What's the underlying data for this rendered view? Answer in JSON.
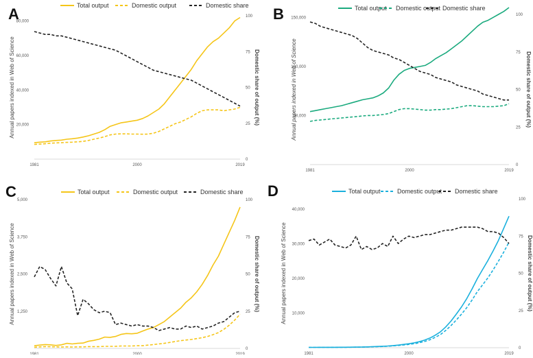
{
  "chart_data": [
    {
      "panel_label": "A",
      "type": "line",
      "legend": [
        "Total output",
        "Domestic output",
        "Domestic share"
      ],
      "ylabel": "Annual papers indexed in Web of Science",
      "y2label": "Domestic share of output (%)",
      "ylabel_italic": false,
      "y2label_italic": false,
      "x_ticks": [
        "1981",
        "2000",
        "2019"
      ],
      "y_ticks": [
        "20,000",
        "40,000",
        "60,000",
        "80,000"
      ],
      "y_tick_values": [
        20000,
        40000,
        60000,
        80000
      ],
      "y2_ticks": [
        "0",
        "25",
        "50",
        "75",
        "100"
      ],
      "y2_tick_values": [
        0,
        25,
        50,
        75,
        100
      ],
      "ylim": [
        0,
        83000
      ],
      "y2lim": [
        0,
        100
      ],
      "x": [
        1981,
        1982,
        1983,
        1984,
        1985,
        1986,
        1987,
        1988,
        1989,
        1990,
        1991,
        1992,
        1993,
        1994,
        1995,
        1996,
        1997,
        1998,
        1999,
        2000,
        2001,
        2002,
        2003,
        2004,
        2005,
        2006,
        2007,
        2008,
        2009,
        2010,
        2011,
        2012,
        2013,
        2014,
        2015,
        2016,
        2017,
        2018,
        2019
      ],
      "colors": {
        "total": "#f5c518",
        "domestic": "#f5c518",
        "share": "#222222"
      },
      "series": [
        {
          "name": "Total output",
          "style": "solid",
          "axis": "left",
          "values": [
            9500,
            9800,
            10000,
            10500,
            10800,
            11000,
            11500,
            11800,
            12200,
            12800,
            13500,
            14500,
            15500,
            17000,
            19000,
            20000,
            21000,
            21500,
            22000,
            22500,
            23500,
            25000,
            27000,
            29000,
            32000,
            36000,
            40000,
            44000,
            48000,
            52000,
            57000,
            61000,
            65000,
            68000,
            70000,
            73000,
            76000,
            80000,
            82000
          ]
        },
        {
          "name": "Domestic output",
          "style": "dashed",
          "axis": "left",
          "values": [
            8500,
            8700,
            8900,
            9200,
            9400,
            9500,
            9700,
            9800,
            10000,
            10300,
            10800,
            11500,
            12200,
            13000,
            14000,
            14500,
            14600,
            14600,
            14500,
            14500,
            14400,
            14500,
            15000,
            16000,
            17500,
            19000,
            20500,
            21500,
            23000,
            24500,
            26500,
            28000,
            28500,
            28500,
            28500,
            28000,
            28500,
            29000,
            30000
          ]
        },
        {
          "name": "Domestic share",
          "style": "dashed",
          "axis": "right",
          "values": [
            89,
            88,
            87,
            87,
            86,
            86,
            85,
            84,
            83,
            82,
            81,
            80,
            79,
            78,
            77,
            76,
            74,
            72,
            70,
            68,
            66,
            64,
            62,
            61,
            60,
            59,
            58,
            57,
            56,
            55,
            53,
            51,
            49,
            47,
            45,
            43,
            41,
            39,
            37
          ]
        }
      ]
    },
    {
      "panel_label": "B",
      "type": "line",
      "legend": [
        "Total output",
        "Domestic output",
        "Domestic share"
      ],
      "ylabel": "Annual papers indexed in Web of Science",
      "y2label": "Domestic share of output (%)",
      "ylabel_italic": true,
      "y2label_italic": false,
      "x_ticks": [
        "1981",
        "2000",
        "2019"
      ],
      "y_ticks": [
        "50,000",
        "100,000",
        "150,000"
      ],
      "y_tick_values": [
        50000,
        100000,
        150000
      ],
      "y2_ticks": [
        "0",
        "25",
        "50",
        "75",
        "100"
      ],
      "y2_tick_values": [
        0,
        25,
        50,
        75,
        100
      ],
      "ylim": [
        0,
        153000
      ],
      "y2lim": [
        0,
        100
      ],
      "x": [
        1981,
        1982,
        1983,
        1984,
        1985,
        1986,
        1987,
        1988,
        1989,
        1990,
        1991,
        1992,
        1993,
        1994,
        1995,
        1996,
        1997,
        1998,
        1999,
        2000,
        2001,
        2002,
        2003,
        2004,
        2005,
        2006,
        2007,
        2008,
        2009,
        2010,
        2011,
        2012,
        2013,
        2014,
        2015,
        2016,
        2017,
        2018,
        2019
      ],
      "colors": {
        "total": "#1aaa7e",
        "domestic": "#1aaa7e",
        "share": "#222222"
      },
      "series": [
        {
          "name": "Total output",
          "style": "solid",
          "axis": "left",
          "values": [
            54000,
            55000,
            56000,
            57000,
            58000,
            59000,
            60000,
            61500,
            63000,
            64500,
            66000,
            67000,
            68000,
            70000,
            73000,
            78000,
            86000,
            92000,
            96000,
            98000,
            99000,
            100000,
            101000,
            104000,
            108000,
            111000,
            114000,
            118000,
            122000,
            126000,
            131000,
            136000,
            141000,
            145000,
            147000,
            150000,
            153000,
            156000,
            160000
          ]
        },
        {
          "name": "Domestic output",
          "style": "dashed",
          "axis": "left",
          "values": [
            44000,
            45000,
            45500,
            46000,
            46500,
            47000,
            47500,
            48000,
            48500,
            49000,
            49500,
            50000,
            50000,
            50500,
            51000,
            52000,
            54000,
            56000,
            57000,
            57000,
            56500,
            56000,
            55500,
            55500,
            56000,
            56000,
            56500,
            57000,
            58000,
            59000,
            60000,
            60000,
            59500,
            59000,
            59000,
            59000,
            59500,
            60000,
            62000
          ]
        },
        {
          "name": "Domestic share",
          "style": "dashed",
          "axis": "right",
          "values": [
            95,
            94,
            92,
            91,
            90,
            89,
            88,
            87,
            86,
            84,
            81,
            78,
            76,
            75,
            74,
            73,
            71,
            70,
            68,
            66,
            64,
            62,
            61,
            60,
            58,
            57,
            56,
            55,
            53,
            52,
            51,
            50,
            49,
            47,
            46,
            45,
            44,
            43,
            43
          ]
        }
      ]
    },
    {
      "panel_label": "C",
      "type": "line",
      "legend": [
        "Total output",
        "Domestic output",
        "Domestic share"
      ],
      "ylabel": "Annual papers indexed in Web of Science",
      "y2label": "Domestic share of output (%)",
      "ylabel_italic": false,
      "y2label_italic": false,
      "x_ticks": [
        "1981",
        "2000",
        "2019"
      ],
      "y_ticks": [
        "1,250",
        "2,500",
        "3,750",
        "5,000"
      ],
      "y_tick_values": [
        1250,
        2500,
        3750,
        5000
      ],
      "y2_ticks": [
        "0",
        "25",
        "50",
        "75",
        "100"
      ],
      "y2_tick_values": [
        0,
        25,
        50,
        75,
        100
      ],
      "ylim": [
        0,
        5000
      ],
      "y2lim": [
        0,
        100
      ],
      "x": [
        1981,
        1982,
        1983,
        1984,
        1985,
        1986,
        1987,
        1988,
        1989,
        1990,
        1991,
        1992,
        1993,
        1994,
        1995,
        1996,
        1997,
        1998,
        1999,
        2000,
        2001,
        2002,
        2003,
        2004,
        2005,
        2006,
        2007,
        2008,
        2009,
        2010,
        2011,
        2012,
        2013,
        2014,
        2015,
        2016,
        2017,
        2018,
        2019
      ],
      "colors": {
        "total": "#f5c518",
        "domestic": "#f5c518",
        "share": "#222222"
      },
      "series": [
        {
          "name": "Total output",
          "style": "solid",
          "axis": "left",
          "values": [
            90,
            110,
            130,
            120,
            100,
            120,
            170,
            150,
            170,
            180,
            240,
            270,
            310,
            380,
            370,
            400,
            470,
            500,
            490,
            510,
            580,
            650,
            700,
            800,
            900,
            1050,
            1200,
            1350,
            1550,
            1700,
            1900,
            2150,
            2450,
            2800,
            3100,
            3500,
            3900,
            4300,
            4750
          ]
        },
        {
          "name": "Domestic output",
          "style": "dashed",
          "axis": "left",
          "values": [
            40,
            50,
            60,
            55,
            50,
            45,
            50,
            45,
            50,
            50,
            60,
            60,
            60,
            70,
            70,
            70,
            80,
            80,
            80,
            90,
            90,
            110,
            130,
            150,
            170,
            200,
            230,
            260,
            280,
            300,
            330,
            360,
            400,
            460,
            530,
            640,
            780,
            950,
            1150
          ]
        },
        {
          "name": "Domestic share",
          "style": "dashed",
          "axis": "right",
          "values": [
            48,
            55,
            53,
            47,
            42,
            55,
            44,
            40,
            22,
            33,
            30,
            26,
            24,
            25,
            24,
            16,
            17,
            16,
            15,
            16,
            15,
            15,
            14,
            12,
            13,
            14,
            13,
            13,
            15,
            14,
            15,
            13,
            14,
            15,
            17,
            18,
            21,
            24,
            25
          ]
        }
      ]
    },
    {
      "panel_label": "D",
      "type": "line",
      "legend": [
        "Total output",
        "Domestic output",
        "Domestic share"
      ],
      "ylabel": "Annual papers indexed in Web of Science",
      "y2label": "Domestic share of output (%)",
      "ylabel_italic": false,
      "y2label_italic": false,
      "x_ticks": [
        "1981",
        "2000",
        "2019"
      ],
      "y_ticks": [
        "10,000",
        "20,000",
        "30,000",
        "40,000"
      ],
      "y_tick_values": [
        10000,
        20000,
        30000,
        40000
      ],
      "y2_ticks": [
        "0",
        "25",
        "50",
        "75",
        "100"
      ],
      "y2_tick_values": [
        0,
        25,
        50,
        75,
        100
      ],
      "ylim": [
        0,
        43000
      ],
      "y2lim": [
        0,
        100
      ],
      "x": [
        1981,
        1982,
        1983,
        1984,
        1985,
        1986,
        1987,
        1988,
        1989,
        1990,
        1991,
        1992,
        1993,
        1994,
        1995,
        1996,
        1997,
        1998,
        1999,
        2000,
        2001,
        2002,
        2003,
        2004,
        2005,
        2006,
        2007,
        2008,
        2009,
        2010,
        2011,
        2012,
        2013,
        2014,
        2015,
        2016,
        2017,
        2018,
        2019
      ],
      "colors": {
        "total": "#1ab0dd",
        "domestic": "#1ab0dd",
        "share": "#222222"
      },
      "series": [
        {
          "name": "Total output",
          "style": "solid",
          "axis": "left",
          "values": [
            100,
            100,
            110,
            110,
            120,
            120,
            130,
            140,
            150,
            170,
            200,
            240,
            290,
            350,
            420,
            500,
            620,
            760,
            950,
            1150,
            1400,
            1750,
            2200,
            2800,
            3600,
            4600,
            6000,
            7700,
            9700,
            11800,
            14200,
            17000,
            20000,
            22600,
            25200,
            28000,
            31000,
            34500,
            38000
          ]
        },
        {
          "name": "Domestic output",
          "style": "dashed",
          "axis": "left",
          "values": [
            90,
            95,
            100,
            100,
            105,
            110,
            115,
            120,
            130,
            150,
            175,
            210,
            250,
            300,
            360,
            430,
            530,
            650,
            800,
            950,
            1150,
            1450,
            1800,
            2300,
            3000,
            3800,
            5000,
            6400,
            8000,
            9700,
            11600,
            13800,
            16200,
            18200,
            20200,
            22500,
            25000,
            27600,
            30500
          ]
        },
        {
          "name": "Domestic share",
          "style": "dashed",
          "axis": "right",
          "values": [
            72,
            73,
            69,
            71,
            73,
            69,
            68,
            67,
            69,
            75,
            66,
            68,
            66,
            67,
            70,
            68,
            75,
            70,
            73,
            75,
            74,
            75,
            76,
            76,
            77,
            78,
            79,
            79,
            80,
            81,
            81,
            81,
            81,
            80,
            78,
            78,
            77,
            74,
            70
          ]
        }
      ]
    }
  ]
}
